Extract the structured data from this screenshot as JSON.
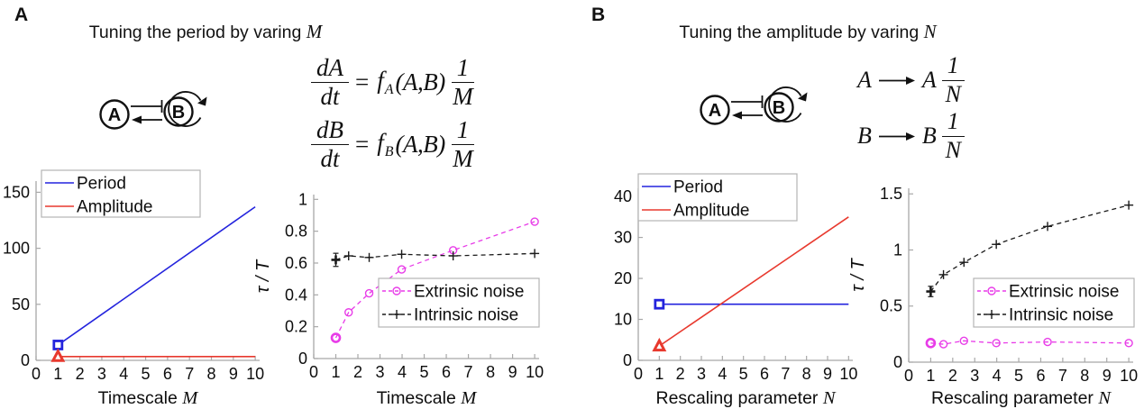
{
  "figure": {
    "panels": [
      {
        "label": "A",
        "title": {
          "text": "Tuning the period by varing",
          "var": "M"
        },
        "diagram": {
          "node_a": "A",
          "node_b": "B",
          "arrows": [
            "inhibition-arrow",
            "activation-arrow",
            "self-loop-arrow"
          ]
        },
        "equations": {
          "type": "ode",
          "rows": [
            {
              "num": "dA",
              "den": "dt",
              "equals": "=",
              "f": "f",
              "fsub": "A",
              "args": "(A,B)",
              "cnum": "1",
              "cden": "M"
            },
            {
              "num": "dB",
              "den": "dt",
              "equals": "=",
              "f": "f",
              "fsub": "B",
              "args": "(A,B)",
              "cnum": "1",
              "cden": "M"
            }
          ]
        }
      },
      {
        "label": "B",
        "title": {
          "text": "Tuning the amplitude by varing",
          "var": "N"
        },
        "diagram": {
          "node_a": "A",
          "node_b": "B",
          "arrows": [
            "inhibition-arrow",
            "activation-arrow",
            "self-loop-arrow"
          ]
        },
        "equations": {
          "type": "reaction",
          "rows": [
            {
              "lhs": "A",
              "arrow_icon": "long-right-arrow",
              "rhs": "A",
              "cnum": "1",
              "cden": "N"
            },
            {
              "lhs": "B",
              "arrow_icon": "long-right-arrow",
              "rhs": "B",
              "cnum": "1",
              "cden": "N"
            }
          ]
        }
      }
    ]
  },
  "colors": {
    "period_blue": "#2323dd",
    "amplitude_red": "#e8392e",
    "extrinsic_magenta": "#e83ce8",
    "intrinsic_black": "#1a1a1a",
    "axis_gray": "#a8a8a8",
    "legend_border": "#b3b3b3"
  },
  "chart_data": [
    {
      "id": "period-amplitude-vs-M",
      "type": "line",
      "title": "",
      "xlabel": {
        "text": "Timescale",
        "var": "M"
      },
      "ylabel": "",
      "xlim": [
        0,
        10.2
      ],
      "ylim": [
        0,
        160
      ],
      "xticks": [
        0,
        1,
        2,
        3,
        4,
        5,
        6,
        7,
        8,
        9,
        10
      ],
      "yticks": [
        0,
        50,
        100,
        150
      ],
      "grid": false,
      "legend_position": "top-left",
      "series": [
        {
          "name": "Period",
          "color": "#2323dd",
          "linestyle": "solid",
          "marker": "square",
          "markers": "first",
          "x": [
            1,
            10
          ],
          "y": [
            13.7,
            137
          ]
        },
        {
          "name": "Amplitude",
          "color": "#e8392e",
          "linestyle": "solid",
          "marker": "triangle",
          "markers": "first",
          "x": [
            1,
            10
          ],
          "y": [
            3.4,
            3.4
          ]
        }
      ]
    },
    {
      "id": "noise-ratio-vs-M",
      "type": "line",
      "title": "",
      "xlabel": {
        "text": "Timescale",
        "var": "M"
      },
      "ylabel": "τ / T",
      "xlim": [
        0,
        10.2
      ],
      "ylim": [
        0,
        1.03
      ],
      "xticks": [
        0,
        1,
        2,
        3,
        4,
        5,
        6,
        7,
        8,
        9,
        10
      ],
      "yticks": [
        0,
        0.2,
        0.4,
        0.6,
        0.8,
        1
      ],
      "grid": false,
      "legend_position": "mid-right",
      "series": [
        {
          "name": "Extrinsic noise",
          "color": "#e83ce8",
          "linestyle": "dashed",
          "marker": "circle",
          "markers": "all",
          "emphasize_first": true,
          "x": [
            1,
            1.58,
            2.51,
            3.98,
            6.31,
            10
          ],
          "y": [
            0.13,
            0.29,
            0.41,
            0.56,
            0.68,
            0.86
          ]
        },
        {
          "name": "Intrinsic noise",
          "color": "#1a1a1a",
          "linestyle": "dashed",
          "marker": "plus",
          "markers": "all",
          "emphasize_first": true,
          "first_errorbar": 0.03,
          "x": [
            1,
            1.58,
            2.51,
            3.98,
            6.31,
            10
          ],
          "y": [
            0.62,
            0.645,
            0.635,
            0.655,
            0.645,
            0.66
          ]
        }
      ]
    },
    {
      "id": "period-amplitude-vs-N",
      "type": "line",
      "title": "",
      "xlabel": {
        "text": "Rescaling parameter",
        "var": "N"
      },
      "ylabel": "",
      "xlim": [
        0,
        10.2
      ],
      "ylim": [
        0,
        42
      ],
      "xticks": [
        0,
        1,
        2,
        3,
        4,
        5,
        6,
        7,
        8,
        9,
        10
      ],
      "yticks": [
        0,
        10,
        20,
        30,
        40
      ],
      "grid": false,
      "legend_position": "top-left",
      "series": [
        {
          "name": "Period",
          "color": "#2323dd",
          "linestyle": "solid",
          "marker": "square",
          "markers": "first",
          "x": [
            1,
            10
          ],
          "y": [
            13.7,
            13.7
          ]
        },
        {
          "name": "Amplitude",
          "color": "#e8392e",
          "linestyle": "solid",
          "marker": "triangle",
          "markers": "first",
          "x": [
            1,
            10
          ],
          "y": [
            3.5,
            35
          ]
        }
      ]
    },
    {
      "id": "noise-ratio-vs-N",
      "type": "line",
      "title": "",
      "xlabel": {
        "text": "Rescaling parameter",
        "var": "N"
      },
      "ylabel": "τ / T",
      "xlim": [
        0,
        10.2
      ],
      "ylim": [
        0,
        1.55
      ],
      "xticks": [
        0,
        1,
        2,
        3,
        4,
        5,
        6,
        7,
        8,
        9,
        10
      ],
      "yticks": [
        0,
        0.5,
        1,
        1.5
      ],
      "grid": false,
      "legend_position": "mid-right",
      "series": [
        {
          "name": "Extrinsic noise",
          "color": "#e83ce8",
          "linestyle": "dashed",
          "marker": "circle",
          "markers": "all",
          "emphasize_first": true,
          "x": [
            1,
            1.58,
            2.51,
            3.98,
            6.31,
            10
          ],
          "y": [
            0.17,
            0.16,
            0.19,
            0.17,
            0.18,
            0.17
          ]
        },
        {
          "name": "Intrinsic noise",
          "color": "#1a1a1a",
          "linestyle": "dashed",
          "marker": "plus",
          "markers": "all",
          "emphasize_first": true,
          "first_errorbar": 0.03,
          "x": [
            1,
            1.58,
            2.51,
            3.98,
            6.31,
            10
          ],
          "y": [
            0.63,
            0.78,
            0.89,
            1.05,
            1.21,
            1.4
          ]
        }
      ]
    }
  ]
}
